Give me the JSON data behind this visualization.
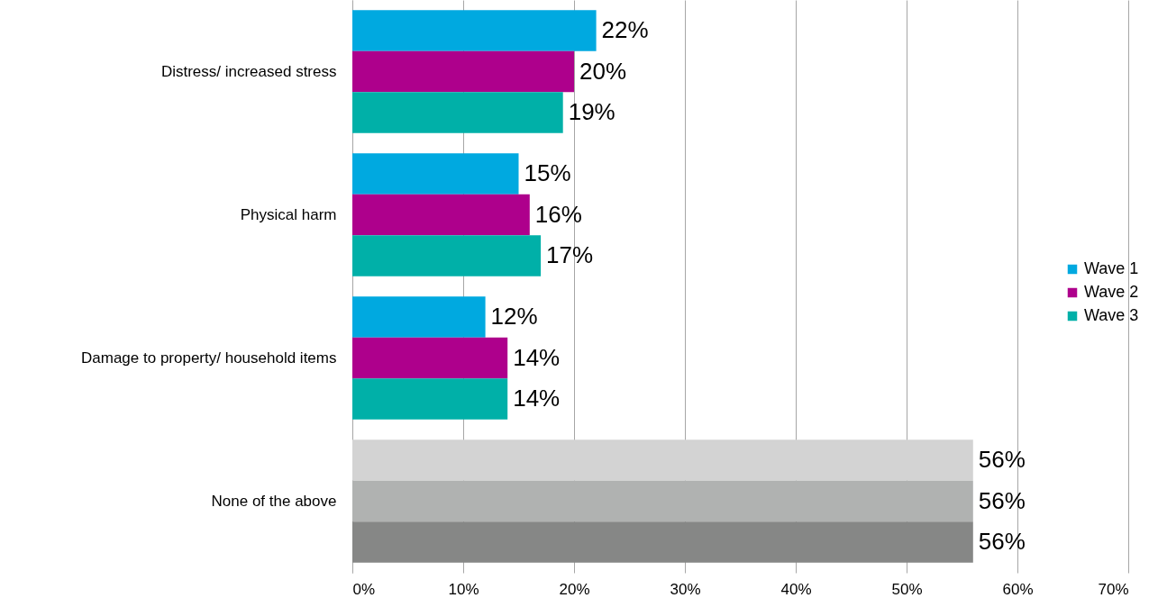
{
  "chart_data": {
    "type": "bar",
    "orientation": "horizontal",
    "categories": [
      "Distress/ increased stress",
      "Physical harm",
      "Damage to property/ household items",
      "None of the above"
    ],
    "series": [
      {
        "name": "Wave 1",
        "color": "#00a9e0",
        "colors": [
          "#00a9e0",
          "#00a9e0",
          "#00a9e0",
          "#d3d3d3"
        ],
        "values": [
          22,
          15,
          12,
          56
        ],
        "value_labels": [
          "22%",
          "15%",
          "12%",
          "56%"
        ]
      },
      {
        "name": "Wave 2",
        "color": "#ae008c",
        "colors": [
          "#ae008c",
          "#ae008c",
          "#ae008c",
          "#b0b2b1"
        ],
        "values": [
          20,
          16,
          14,
          56
        ],
        "value_labels": [
          "20%",
          "16%",
          "14%",
          "56%"
        ]
      },
      {
        "name": "Wave 3",
        "color": "#00b0a8",
        "colors": [
          "#00b0a8",
          "#00b0a8",
          "#00b0a8",
          "#868786"
        ],
        "values": [
          19,
          17,
          14,
          56
        ],
        "value_labels": [
          "19%",
          "17%",
          "14%",
          "56%"
        ]
      }
    ],
    "xlim": [
      0,
      70
    ],
    "xticks": [
      {
        "value": 0,
        "label": "0%"
      },
      {
        "value": 10,
        "label": "10%"
      },
      {
        "value": 20,
        "label": "20%"
      },
      {
        "value": 30,
        "label": "30%"
      },
      {
        "value": 40,
        "label": "40%"
      },
      {
        "value": 50,
        "label": "50%"
      },
      {
        "value": 60,
        "label": "60%"
      },
      {
        "value": 70,
        "label": "70%"
      }
    ],
    "grid": "x",
    "legend": "right"
  }
}
